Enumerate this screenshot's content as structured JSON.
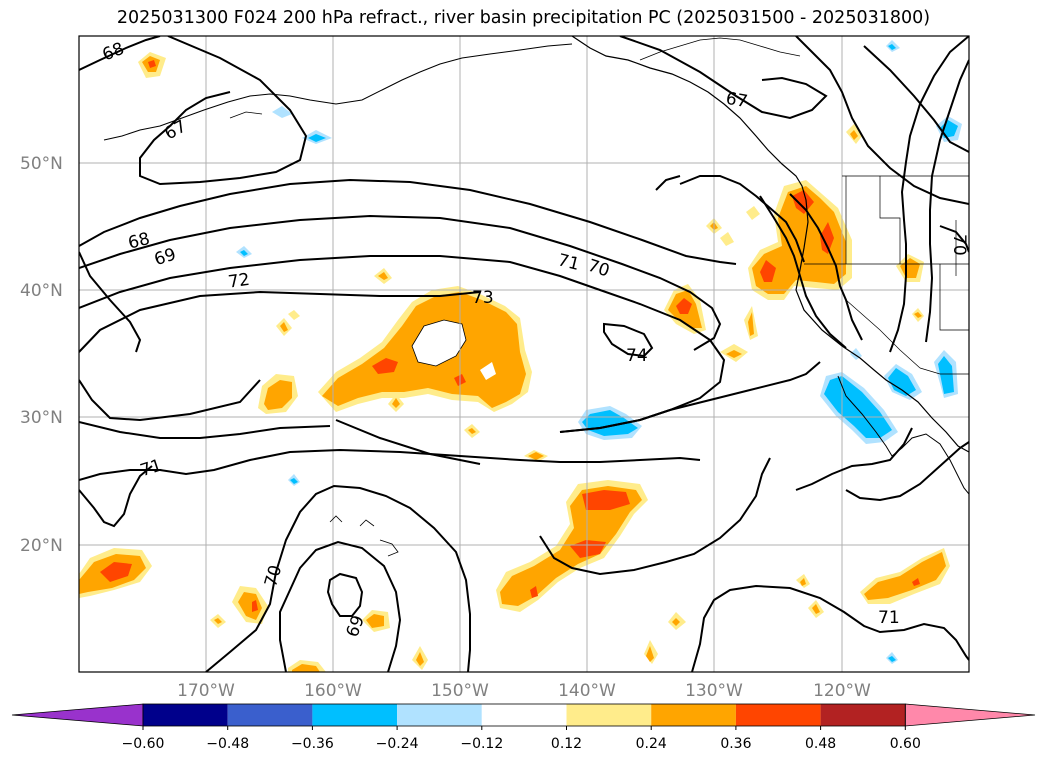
{
  "title": "2025031300 F024 200 hPa refract., river basin precipitation PC (2025031500 - 2025031800)",
  "latitude_labels": [
    "50°N",
    "40°N",
    "30°N",
    "20°N"
  ],
  "longitude_labels": [
    "170°W",
    "160°W",
    "150°W",
    "140°W",
    "130°W",
    "120°W"
  ],
  "contour_labels": [
    "68",
    "67",
    "67",
    "68",
    "69",
    "72",
    "71",
    "70",
    "73",
    "74",
    "71",
    "70",
    "69",
    "71",
    "70"
  ],
  "colorbar": {
    "ticks": [
      "−0.60",
      "−0.48",
      "−0.36",
      "−0.24",
      "−0.12",
      "0.12",
      "0.24",
      "0.36",
      "0.48",
      "0.60"
    ],
    "colors": [
      "#9932cc",
      "#00008b",
      "#3a5fcd",
      "#00bfff",
      "#b0e2ff",
      "#ffffff",
      "#ffec8b",
      "#ffa500",
      "#ff4500",
      "#b22222",
      "#ff88aa"
    ]
  },
  "colors": {
    "light_yellow": "#ffec8b",
    "orange": "#ffa500",
    "red_orange": "#ff4500",
    "deep_sky_blue": "#00bfff",
    "light_blue": "#b0e2ff",
    "contour": "#000000",
    "grid": "#b0b0b0"
  }
}
